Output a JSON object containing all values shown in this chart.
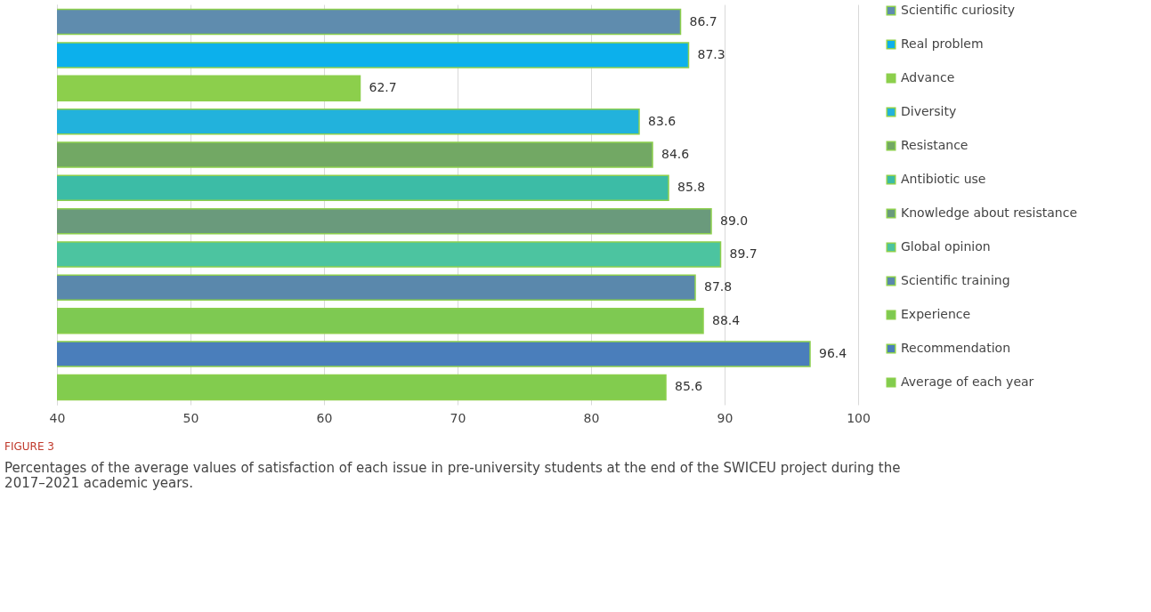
{
  "chart_data": {
    "type": "bar",
    "orientation": "horizontal",
    "categories": [
      null,
      null,
      null,
      null,
      null,
      null,
      null,
      null,
      null,
      null,
      null,
      null
    ],
    "series": [
      {
        "name": "Scientific curiosity",
        "color": "#5f8cae",
        "values": [
          86.7,
          null,
          null,
          null,
          null,
          null,
          null,
          null,
          null,
          null,
          null,
          null
        ]
      },
      {
        "name": "Real problem",
        "color": "#0cb0ec",
        "values": [
          null,
          87.3,
          null,
          null,
          null,
          null,
          null,
          null,
          null,
          null,
          null,
          null
        ]
      },
      {
        "name": "Advance",
        "color": "#8ccf4c",
        "values": [
          null,
          null,
          62.7,
          null,
          null,
          null,
          null,
          null,
          null,
          null,
          null,
          null
        ]
      },
      {
        "name": "Diversity",
        "color": "#22b2dc",
        "values": [
          null,
          null,
          null,
          83.6,
          null,
          null,
          null,
          null,
          null,
          null,
          null,
          null
        ]
      },
      {
        "name": "Resistance",
        "color": "#72a864",
        "values": [
          null,
          null,
          null,
          null,
          84.6,
          null,
          null,
          null,
          null,
          null,
          null,
          null
        ]
      },
      {
        "name": "Antibiotic use",
        "color": "#3cbca6",
        "values": [
          null,
          null,
          null,
          null,
          null,
          85.8,
          null,
          null,
          null,
          null,
          null,
          null
        ]
      },
      {
        "name": "Knowledge about resistance",
        "color": "#6a9a7c",
        "values": [
          null,
          null,
          null,
          null,
          null,
          null,
          89.0,
          null,
          null,
          null,
          null,
          null
        ]
      },
      {
        "name": "Global opinion",
        "color": "#4cc4a0",
        "values": [
          null,
          null,
          null,
          null,
          null,
          null,
          null,
          89.7,
          null,
          null,
          null,
          null
        ]
      },
      {
        "name": "Scientific training",
        "color": "#5a88ac",
        "values": [
          null,
          null,
          null,
          null,
          null,
          null,
          null,
          null,
          87.8,
          null,
          null,
          null
        ]
      },
      {
        "name": "Experience",
        "color": "#7ec952",
        "values": [
          null,
          null,
          null,
          null,
          null,
          null,
          null,
          null,
          null,
          88.4,
          null,
          null
        ]
      },
      {
        "name": "Recommendation",
        "color": "#4a7ebb",
        "values": [
          null,
          null,
          null,
          null,
          null,
          null,
          null,
          null,
          null,
          null,
          96.4,
          null
        ]
      },
      {
        "name": "Average of each year",
        "color": "#82cc4e",
        "values": [
          null,
          null,
          null,
          null,
          null,
          null,
          null,
          null,
          null,
          null,
          null,
          85.6
        ]
      }
    ],
    "xlim": [
      40,
      100
    ],
    "xticks": [
      40,
      50,
      60,
      70,
      80,
      90,
      100
    ],
    "value_labels": [
      "86.7",
      "87.3",
      "62.7",
      "83.6",
      "84.6",
      "85.8",
      "89.0",
      "89.7",
      "87.8",
      "88.4",
      "96.4",
      "85.6"
    ],
    "grid": "x",
    "legend": "right",
    "annotations": [
      "FIGURE 3",
      "Percentages of the average values of satisfaction of each issue in pre-university students at the end of the SWICEU project during the 2017–2021 academic years."
    ]
  }
}
